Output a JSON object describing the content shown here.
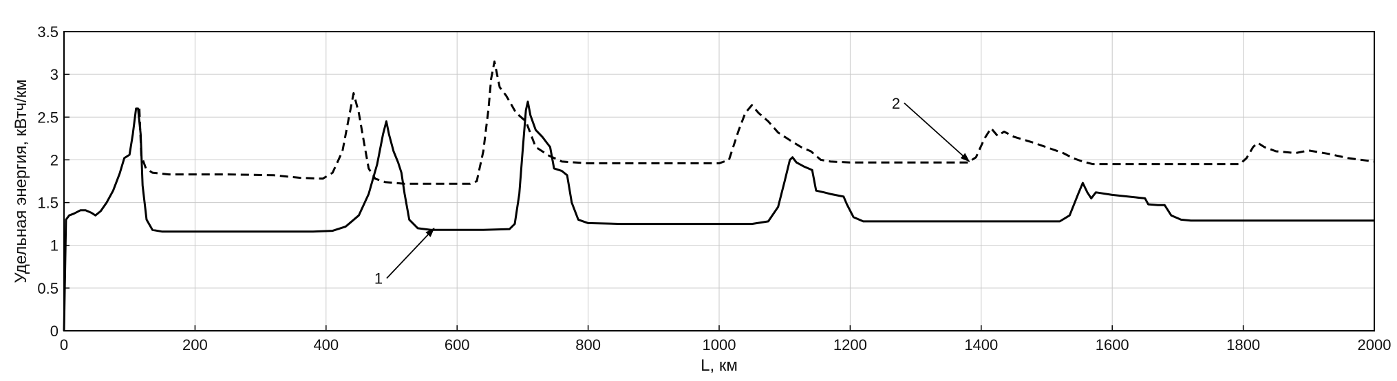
{
  "chart_data": {
    "type": "line",
    "title": "",
    "xlabel": "L, км",
    "ylabel": "Удельная энергия, кВтч/км",
    "xlim": [
      0,
      2000
    ],
    "ylim": [
      0,
      3.5
    ],
    "grid": true,
    "x_ticks": [
      0,
      200,
      400,
      600,
      800,
      1000,
      1200,
      1400,
      1600,
      1800,
      2000
    ],
    "y_ticks": [
      "0",
      "0.5",
      "1",
      "1.5",
      "2",
      "2.5",
      "3",
      "3.5"
    ],
    "series": [
      {
        "line_style": "solid",
        "color": "#000000",
        "points": [
          [
            0,
            0
          ],
          [
            3,
            1.3
          ],
          [
            8,
            1.35
          ],
          [
            15,
            1.37
          ],
          [
            25,
            1.41
          ],
          [
            33,
            1.41
          ],
          [
            42,
            1.38
          ],
          [
            48,
            1.35
          ],
          [
            56,
            1.4
          ],
          [
            65,
            1.5
          ],
          [
            75,
            1.64
          ],
          [
            85,
            1.84
          ],
          [
            92,
            2.02
          ],
          [
            100,
            2.06
          ],
          [
            105,
            2.3
          ],
          [
            110,
            2.6
          ],
          [
            113,
            2.6
          ],
          [
            117,
            2.3
          ],
          [
            120,
            1.7
          ],
          [
            126,
            1.3
          ],
          [
            135,
            1.18
          ],
          [
            150,
            1.16
          ],
          [
            200,
            1.16
          ],
          [
            300,
            1.16
          ],
          [
            380,
            1.16
          ],
          [
            410,
            1.17
          ],
          [
            430,
            1.22
          ],
          [
            450,
            1.35
          ],
          [
            465,
            1.6
          ],
          [
            478,
            1.95
          ],
          [
            487,
            2.3
          ],
          [
            492,
            2.45
          ],
          [
            496,
            2.3
          ],
          [
            503,
            2.1
          ],
          [
            510,
            1.97
          ],
          [
            515,
            1.85
          ],
          [
            520,
            1.6
          ],
          [
            527,
            1.3
          ],
          [
            540,
            1.2
          ],
          [
            560,
            1.18
          ],
          [
            640,
            1.18
          ],
          [
            680,
            1.19
          ],
          [
            688,
            1.25
          ],
          [
            695,
            1.6
          ],
          [
            700,
            2.1
          ],
          [
            705,
            2.58
          ],
          [
            708,
            2.68
          ],
          [
            712,
            2.52
          ],
          [
            720,
            2.35
          ],
          [
            730,
            2.27
          ],
          [
            737,
            2.2
          ],
          [
            742,
            2.15
          ],
          [
            748,
            1.9
          ],
          [
            760,
            1.87
          ],
          [
            768,
            1.82
          ],
          [
            775,
            1.5
          ],
          [
            785,
            1.3
          ],
          [
            800,
            1.26
          ],
          [
            850,
            1.25
          ],
          [
            1050,
            1.25
          ],
          [
            1075,
            1.28
          ],
          [
            1090,
            1.45
          ],
          [
            1100,
            1.75
          ],
          [
            1108,
            2.0
          ],
          [
            1112,
            2.03
          ],
          [
            1118,
            1.97
          ],
          [
            1130,
            1.92
          ],
          [
            1142,
            1.88
          ],
          [
            1148,
            1.64
          ],
          [
            1160,
            1.62
          ],
          [
            1170,
            1.6
          ],
          [
            1190,
            1.57
          ],
          [
            1195,
            1.48
          ],
          [
            1205,
            1.33
          ],
          [
            1220,
            1.28
          ],
          [
            1300,
            1.28
          ],
          [
            1520,
            1.28
          ],
          [
            1535,
            1.35
          ],
          [
            1548,
            1.6
          ],
          [
            1555,
            1.73
          ],
          [
            1562,
            1.62
          ],
          [
            1568,
            1.55
          ],
          [
            1575,
            1.62
          ],
          [
            1600,
            1.59
          ],
          [
            1650,
            1.55
          ],
          [
            1655,
            1.48
          ],
          [
            1670,
            1.47
          ],
          [
            1680,
            1.47
          ],
          [
            1690,
            1.35
          ],
          [
            1705,
            1.3
          ],
          [
            1720,
            1.29
          ],
          [
            2000,
            1.29
          ]
        ]
      },
      {
        "line_style": "dashed",
        "color": "#000000",
        "points": [
          [
            115,
            2.6
          ],
          [
            118,
            2.05
          ],
          [
            125,
            1.9
          ],
          [
            135,
            1.85
          ],
          [
            160,
            1.83
          ],
          [
            250,
            1.83
          ],
          [
            320,
            1.82
          ],
          [
            360,
            1.79
          ],
          [
            395,
            1.78
          ],
          [
            410,
            1.85
          ],
          [
            425,
            2.1
          ],
          [
            435,
            2.5
          ],
          [
            442,
            2.78
          ],
          [
            450,
            2.55
          ],
          [
            458,
            2.2
          ],
          [
            465,
            1.9
          ],
          [
            475,
            1.78
          ],
          [
            490,
            1.74
          ],
          [
            520,
            1.72
          ],
          [
            620,
            1.72
          ],
          [
            630,
            1.75
          ],
          [
            640,
            2.1
          ],
          [
            648,
            2.6
          ],
          [
            652,
            2.95
          ],
          [
            657,
            3.15
          ],
          [
            665,
            2.85
          ],
          [
            675,
            2.75
          ],
          [
            690,
            2.55
          ],
          [
            705,
            2.45
          ],
          [
            720,
            2.15
          ],
          [
            740,
            2.05
          ],
          [
            760,
            1.98
          ],
          [
            800,
            1.96
          ],
          [
            1000,
            1.96
          ],
          [
            1015,
            2.0
          ],
          [
            1030,
            2.35
          ],
          [
            1040,
            2.55
          ],
          [
            1050,
            2.64
          ],
          [
            1060,
            2.55
          ],
          [
            1075,
            2.45
          ],
          [
            1090,
            2.32
          ],
          [
            1110,
            2.22
          ],
          [
            1125,
            2.15
          ],
          [
            1140,
            2.1
          ],
          [
            1155,
            2.0
          ],
          [
            1170,
            1.98
          ],
          [
            1200,
            1.97
          ],
          [
            1300,
            1.97
          ],
          [
            1380,
            1.97
          ],
          [
            1392,
            2.03
          ],
          [
            1405,
            2.25
          ],
          [
            1415,
            2.37
          ],
          [
            1425,
            2.28
          ],
          [
            1435,
            2.33
          ],
          [
            1450,
            2.27
          ],
          [
            1480,
            2.2
          ],
          [
            1510,
            2.12
          ],
          [
            1525,
            2.08
          ],
          [
            1540,
            2.02
          ],
          [
            1555,
            1.98
          ],
          [
            1570,
            1.95
          ],
          [
            1600,
            1.95
          ],
          [
            1795,
            1.95
          ],
          [
            1805,
            2.02
          ],
          [
            1815,
            2.15
          ],
          [
            1822,
            2.2
          ],
          [
            1832,
            2.15
          ],
          [
            1850,
            2.1
          ],
          [
            1880,
            2.08
          ],
          [
            1900,
            2.11
          ],
          [
            1930,
            2.07
          ],
          [
            1960,
            2.02
          ],
          [
            1990,
            1.99
          ],
          [
            2000,
            1.98
          ]
        ]
      }
    ],
    "annotations": [
      {
        "text": "1",
        "x": 480,
        "y": 0.55,
        "arrow_to": [
          565,
          1.2
        ]
      },
      {
        "text": "2",
        "x": 1270,
        "y": 2.6,
        "arrow_to": [
          1382,
          1.98
        ]
      }
    ]
  }
}
